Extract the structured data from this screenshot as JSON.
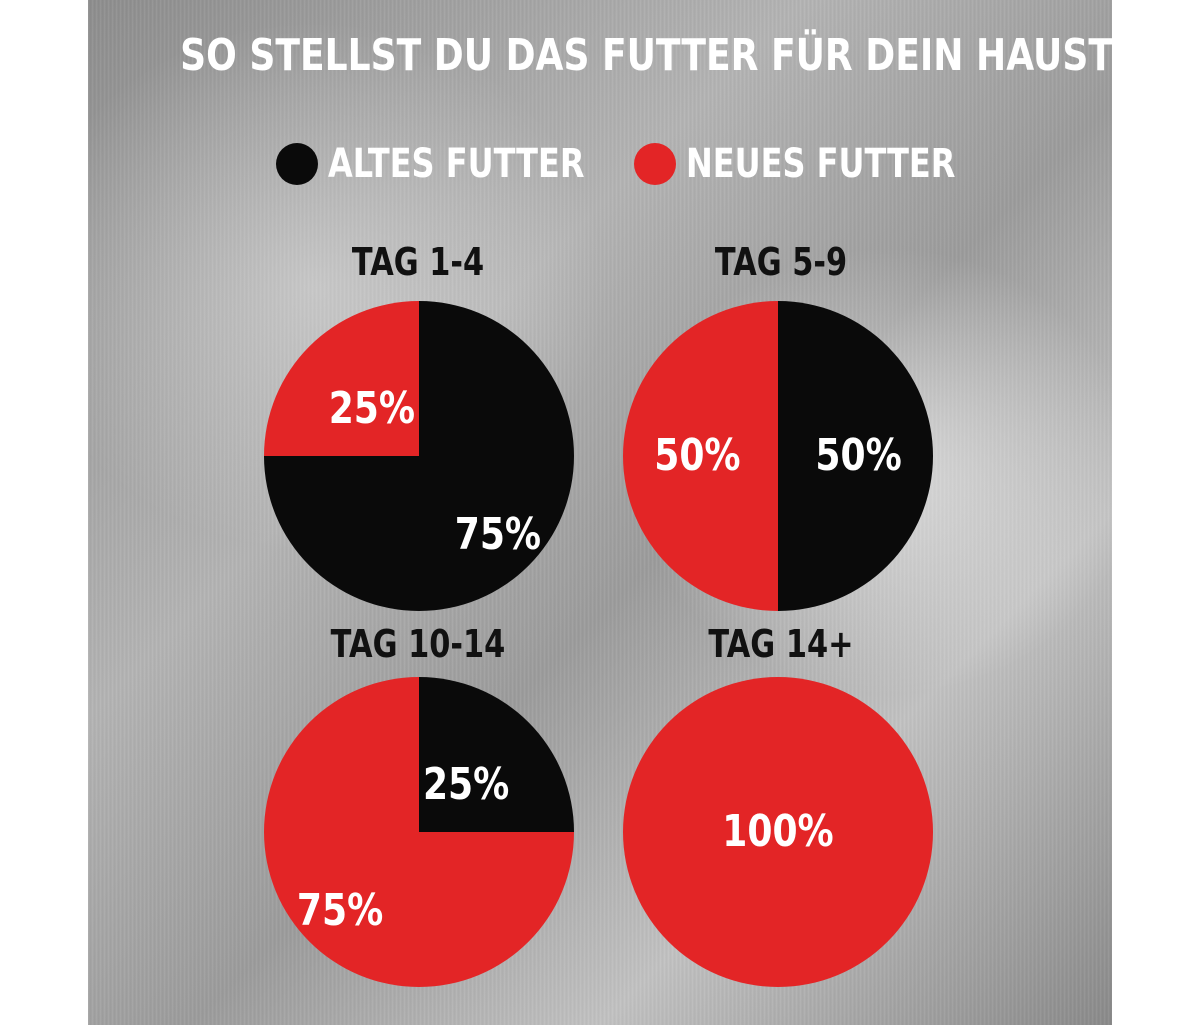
{
  "title": "SO STELLST DU DAS FUTTER FÜR DEIN HAUSTIER UM",
  "legend": [
    {
      "label": "ALTES FUTTER",
      "color": "#0a0a0a"
    },
    {
      "label": "NEUES FUTTER",
      "color": "#e32526"
    }
  ],
  "colors": {
    "old": "#0a0a0a",
    "new": "#e32526",
    "text": "#ffffff"
  },
  "chart_data": [
    {
      "type": "pie",
      "title": "TAG 1-4",
      "slices": [
        {
          "name": "ALTES FUTTER",
          "value": 75,
          "label": "75%"
        },
        {
          "name": "NEUES FUTTER",
          "value": 25,
          "label": "25%"
        }
      ]
    },
    {
      "type": "pie",
      "title": "TAG 5-9",
      "slices": [
        {
          "name": "ALTES FUTTER",
          "value": 50,
          "label": "50%"
        },
        {
          "name": "NEUES FUTTER",
          "value": 50,
          "label": "50%"
        }
      ]
    },
    {
      "type": "pie",
      "title": "TAG 10-14",
      "slices": [
        {
          "name": "ALTES FUTTER",
          "value": 25,
          "label": "25%"
        },
        {
          "name": "NEUES FUTTER",
          "value": 75,
          "label": "75%"
        }
      ]
    },
    {
      "type": "pie",
      "title": "TAG 14+",
      "slices": [
        {
          "name": "ALTES FUTTER",
          "value": 0,
          "label": ""
        },
        {
          "name": "NEUES FUTTER",
          "value": 100,
          "label": "100%"
        }
      ]
    }
  ]
}
